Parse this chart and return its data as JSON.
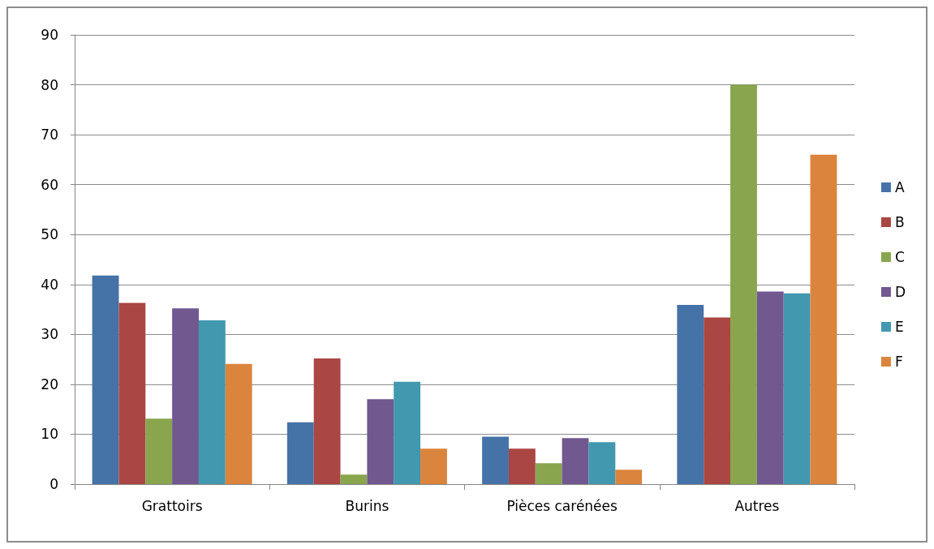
{
  "chart_data": {
    "type": "bar",
    "categories": [
      "Grattoirs",
      "Burins",
      "Pièces carénées",
      "Autres"
    ],
    "series": [
      {
        "name": "A",
        "color": "#4572a7",
        "values": [
          41.8,
          12.4,
          9.5,
          35.9
        ]
      },
      {
        "name": "B",
        "color": "#aa4643",
        "values": [
          36.3,
          25.2,
          7.1,
          33.4
        ]
      },
      {
        "name": "C",
        "color": "#89a54e",
        "values": [
          13.1,
          1.9,
          4.2,
          80
        ]
      },
      {
        "name": "D",
        "color": "#71588f",
        "values": [
          35.2,
          17.0,
          9.2,
          38.6
        ]
      },
      {
        "name": "E",
        "color": "#4198af",
        "values": [
          32.8,
          20.5,
          8.4,
          38.2
        ]
      },
      {
        "name": "F",
        "color": "#db843d",
        "values": [
          24.1,
          7.1,
          2.9,
          66.0
        ]
      }
    ],
    "ylim": [
      0,
      90
    ],
    "yticks": [
      0,
      10,
      20,
      30,
      40,
      50,
      60,
      70,
      80,
      90
    ],
    "grid": "y",
    "legend": "right"
  }
}
